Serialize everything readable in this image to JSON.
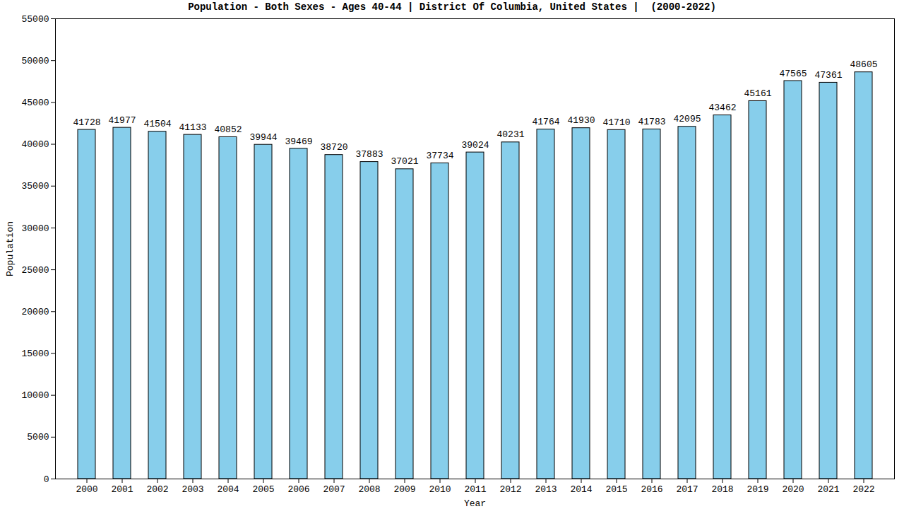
{
  "chart_data": {
    "type": "bar",
    "title": "Population - Both Sexes - Ages 40-44 | District Of Columbia, United States |  (2000-2022)",
    "x_label": "Year",
    "y_label": "Population",
    "categories": [
      "2000",
      "2001",
      "2002",
      "2003",
      "2004",
      "2005",
      "2006",
      "2007",
      "2008",
      "2009",
      "2010",
      "2011",
      "2012",
      "2013",
      "2014",
      "2015",
      "2016",
      "2017",
      "2018",
      "2019",
      "2020",
      "2021",
      "2022"
    ],
    "values": [
      41728,
      41977,
      41504,
      41133,
      40852,
      39944,
      39469,
      38720,
      37883,
      37021,
      37734,
      39024,
      40231,
      41764,
      41930,
      41710,
      41783,
      42095,
      43462,
      45161,
      47565,
      47361,
      48605
    ],
    "color": "#87ceeb",
    "ylim": [
      0,
      55000
    ],
    "yticks": [
      0,
      5000,
      10000,
      15000,
      20000,
      25000,
      30000,
      35000,
      40000,
      45000,
      50000,
      55000
    ],
    "grid": false,
    "data_labels": true
  }
}
